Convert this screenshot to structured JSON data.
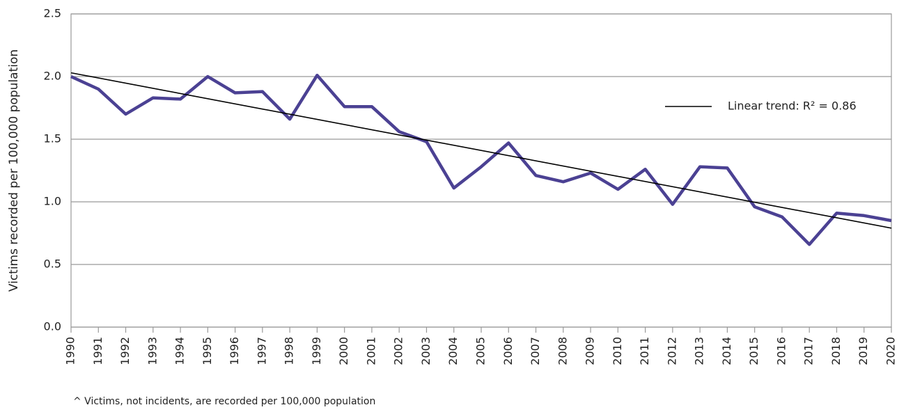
{
  "chart_data": {
    "type": "line",
    "ylabel": "Victims recorded per 100,000 population",
    "footnote": "^ Victims, not incidents, are recorded per 100,000 population",
    "x": [
      1990,
      1991,
      1992,
      1993,
      1994,
      1995,
      1996,
      1997,
      1998,
      1999,
      2000,
      2001,
      2002,
      2003,
      2004,
      2005,
      2006,
      2007,
      2008,
      2009,
      2010,
      2011,
      2012,
      2013,
      2014,
      2015,
      2016,
      2017,
      2018,
      2019,
      2020
    ],
    "xlim": [
      1990,
      2020
    ],
    "xticks": [
      1990,
      1991,
      1992,
      1993,
      1994,
      1995,
      1996,
      1997,
      1998,
      1999,
      2000,
      2001,
      2002,
      2003,
      2004,
      2005,
      2006,
      2007,
      2008,
      2009,
      2010,
      2011,
      2012,
      2013,
      2014,
      2015,
      2016,
      2017,
      2018,
      2019,
      2020
    ],
    "series": [
      {
        "name": "Victims",
        "color": "#4b4193",
        "values": [
          2.0,
          1.9,
          1.7,
          1.83,
          1.82,
          2.0,
          1.87,
          1.88,
          1.66,
          2.01,
          1.76,
          1.76,
          1.56,
          1.48,
          1.11,
          1.28,
          1.47,
          1.21,
          1.16,
          1.23,
          1.1,
          1.26,
          0.98,
          1.28,
          1.27,
          0.96,
          0.88,
          0.66,
          0.91,
          0.89,
          0.85
        ]
      }
    ],
    "trend": {
      "name": "Linear trend: R² = 0.86",
      "color": "#000000",
      "x": [
        1990,
        2020
      ],
      "values": [
        2.03,
        0.79
      ]
    },
    "ylim": [
      0,
      2.5
    ],
    "yticks": [
      {
        "value": 0,
        "label": "0.0"
      },
      0.5,
      {
        "value": 1,
        "label": "1.0"
      },
      1.5,
      {
        "value": 2,
        "label": "2.0"
      },
      2.5
    ],
    "grid": true
  }
}
